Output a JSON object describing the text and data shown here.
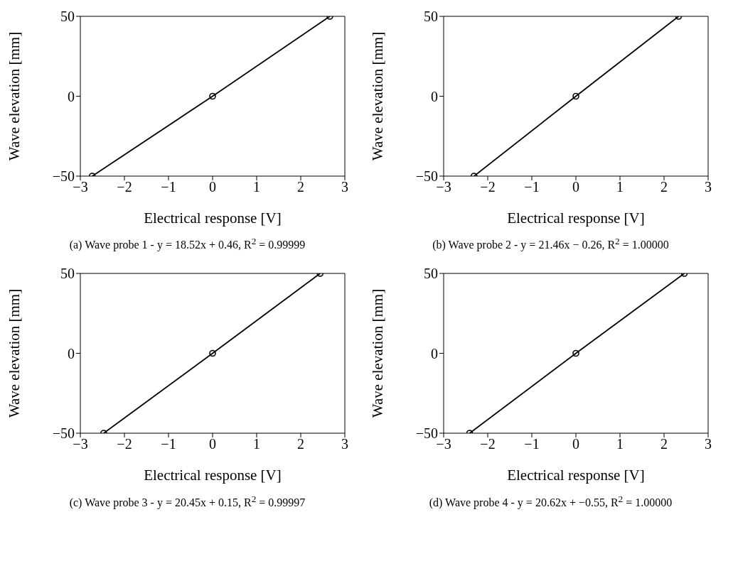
{
  "chart_data": [
    {
      "type": "line",
      "title": "(a) Wave probe 1 - y = 18.52x + 0.46, R$^{2}$ = 0.99999",
      "xlabel": "Electrical response [V]",
      "ylabel": "Wave elevation [mm]",
      "x": [
        -2.73,
        0,
        2.66
      ],
      "series": [
        {
          "color": "#000000",
          "values": [
            -50,
            0,
            50
          ]
        }
      ],
      "xlim": [
        -3,
        3
      ],
      "xticks": [
        -3,
        -2,
        -1,
        0,
        1,
        2,
        3
      ],
      "ylim": [
        -50,
        50
      ],
      "yticks": [
        -50,
        0,
        50
      ],
      "marker": "circle",
      "line_style": "solid",
      "grid": false,
      "legend": false
    },
    {
      "type": "line",
      "title": "(b) Wave probe 2 - y = 21.46x − 0.26, R$^{2}$ = 1.00000",
      "xlabel": "Electrical response [V]",
      "ylabel": "Wave elevation [mm]",
      "x": [
        -2.31,
        0,
        2.33
      ],
      "series": [
        {
          "color": "#000000",
          "values": [
            -50,
            0,
            50
          ]
        }
      ],
      "xlim": [
        -3,
        3
      ],
      "xticks": [
        -3,
        -2,
        -1,
        0,
        1,
        2,
        3
      ],
      "ylim": [
        -50,
        50
      ],
      "yticks": [
        -50,
        0,
        50
      ],
      "marker": "circle",
      "line_style": "solid",
      "grid": false,
      "legend": false
    },
    {
      "type": "line",
      "title": "(c) Wave probe 3 - y = 20.45x + 0.15, R$^{2}$ = 0.99997",
      "xlabel": "Electrical response [V]",
      "ylabel": "Wave elevation [mm]",
      "x": [
        -2.47,
        0,
        2.44
      ],
      "series": [
        {
          "color": "#000000",
          "values": [
            -50,
            0,
            50
          ]
        }
      ],
      "xlim": [
        -3,
        3
      ],
      "xticks": [
        -3,
        -2,
        -1,
        0,
        1,
        2,
        3
      ],
      "ylim": [
        -50,
        50
      ],
      "yticks": [
        -50,
        0,
        50
      ],
      "marker": "circle",
      "line_style": "solid",
      "grid": false,
      "legend": false
    },
    {
      "type": "line",
      "title": "(d) Wave probe 4 - y = 20.62x + −0.55, R$^{2}$ = 1.00000",
      "xlabel": "Electrical response [V]",
      "ylabel": "Wave elevation [mm]",
      "x": [
        -2.41,
        0,
        2.46
      ],
      "series": [
        {
          "color": "#000000",
          "values": [
            -50,
            0,
            50
          ]
        }
      ],
      "xlim": [
        -3,
        3
      ],
      "xticks": [
        -3,
        -2,
        -1,
        0,
        1,
        2,
        3
      ],
      "ylim": [
        -50,
        50
      ],
      "yticks": [
        -50,
        0,
        50
      ],
      "marker": "circle",
      "line_style": "solid",
      "grid": false,
      "legend": false
    }
  ]
}
